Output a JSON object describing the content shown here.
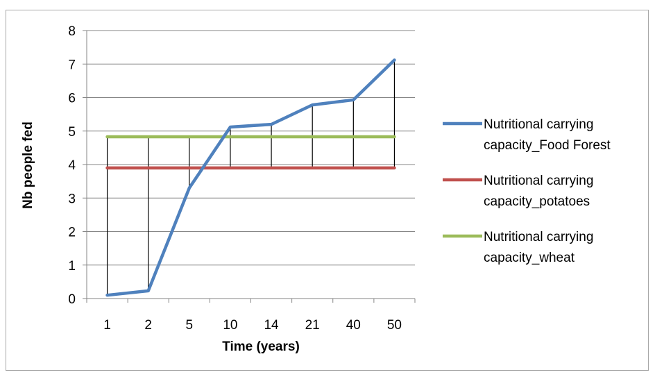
{
  "chart_data": {
    "type": "line",
    "categories": [
      "1",
      "2",
      "5",
      "10",
      "14",
      "21",
      "40",
      "50"
    ],
    "xlabel": "Time (years)",
    "ylabel": "Nb people fed",
    "ylim": [
      0,
      8
    ],
    "yticks": [
      0,
      1,
      2,
      3,
      4,
      5,
      6,
      7,
      8
    ],
    "grid": "horizontal",
    "legend_position": "right",
    "series": [
      {
        "name": "Nutritional carrying capacity_Food Forest",
        "legend_lines": [
          "Nutritional carrying",
          "capacity_Food Forest"
        ],
        "color": "#4f81bd",
        "values": [
          0.1,
          0.23,
          3.3,
          5.12,
          5.2,
          5.78,
          5.93,
          7.12
        ]
      },
      {
        "name": "Nutritional carrying capacity_potatoes",
        "legend_lines": [
          "Nutritional carrying",
          "capacity_potatoes"
        ],
        "color": "#c0504d",
        "values": [
          3.9,
          3.9,
          3.9,
          3.9,
          3.9,
          3.9,
          3.9,
          3.9
        ]
      },
      {
        "name": "Nutritional carrying capacity_wheat",
        "legend_lines": [
          "Nutritional carrying",
          "capacity_wheat"
        ],
        "color": "#9bbb59",
        "values": [
          4.83,
          4.83,
          4.83,
          4.83,
          4.83,
          4.83,
          4.83,
          4.83
        ]
      }
    ],
    "drop_lines": true
  }
}
